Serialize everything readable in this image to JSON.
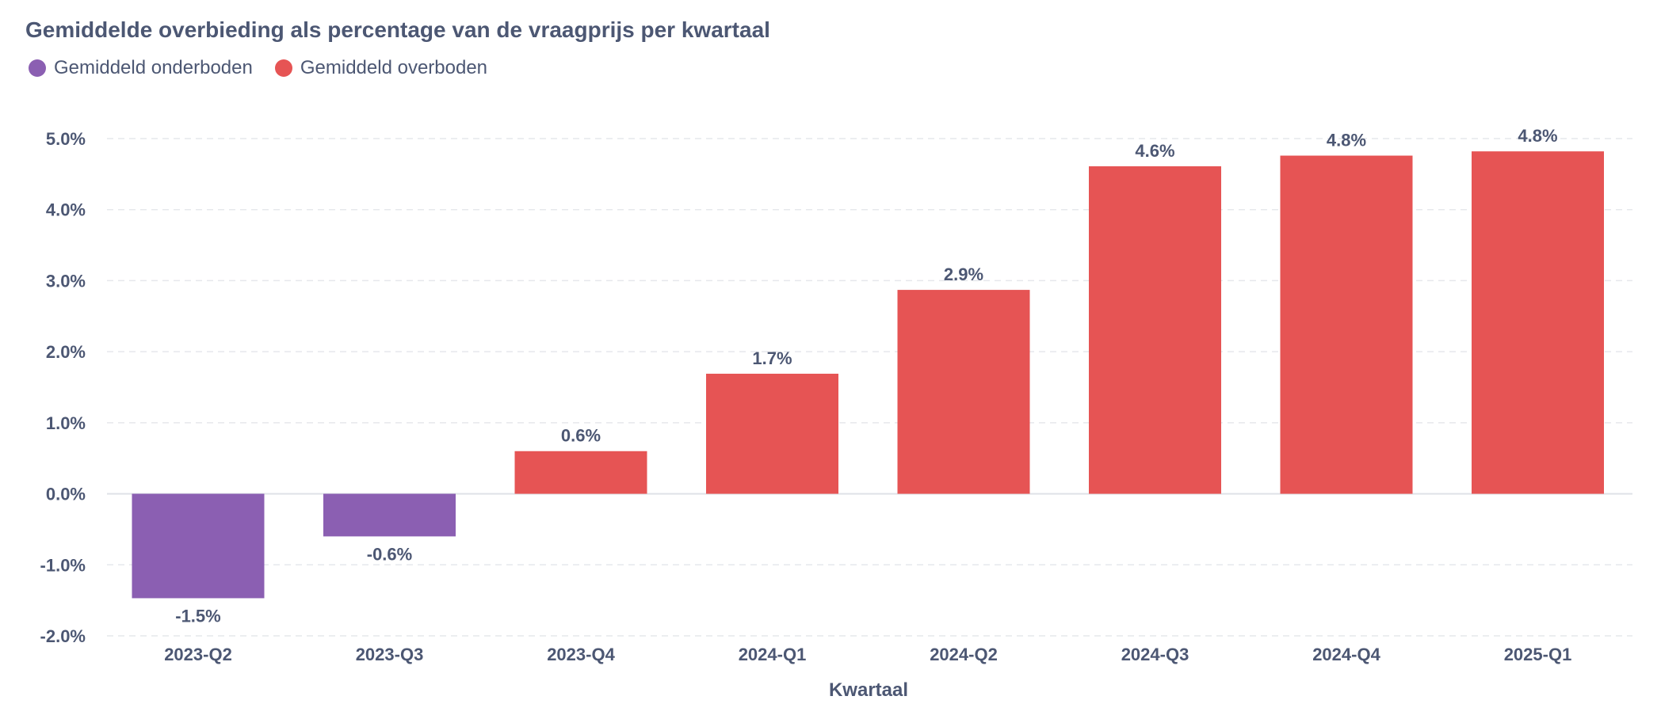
{
  "chart_data": {
    "type": "bar",
    "title": "Gemiddelde overbieding als percentage van de vraagprijs per kwartaal",
    "xlabel": "Kwartaal",
    "ylabel": "",
    "ylim": [
      -2.0,
      5.0
    ],
    "yticks": [
      "5.0%",
      "4.0%",
      "3.0%",
      "2.0%",
      "1.0%",
      "0.0%",
      "-1.0%",
      "-2.0%"
    ],
    "ytick_values": [
      5,
      4,
      3,
      2,
      1,
      0,
      -1,
      -2
    ],
    "categories": [
      "2023-Q2",
      "2023-Q3",
      "2023-Q4",
      "2024-Q1",
      "2024-Q2",
      "2024-Q3",
      "2024-Q4",
      "2025-Q1"
    ],
    "values": [
      -1.47,
      -0.6,
      0.6,
      1.69,
      2.87,
      4.61,
      4.76,
      4.82
    ],
    "data_labels": [
      "-1.5%",
      "-0.6%",
      "0.6%",
      "1.7%",
      "2.9%",
      "4.6%",
      "4.8%",
      "4.8%"
    ],
    "legend": {
      "placement": "top-left",
      "entries": [
        {
          "name": "Gemiddeld onderboden",
          "color": "#8b5fb2"
        },
        {
          "name": "Gemiddeld overboden",
          "color": "#e65454"
        }
      ]
    },
    "colors": {
      "negative": "#8b5fb2",
      "positive": "#e65454",
      "grid": "#e6e8ec",
      "text": "#4c5773"
    },
    "grid": true
  }
}
